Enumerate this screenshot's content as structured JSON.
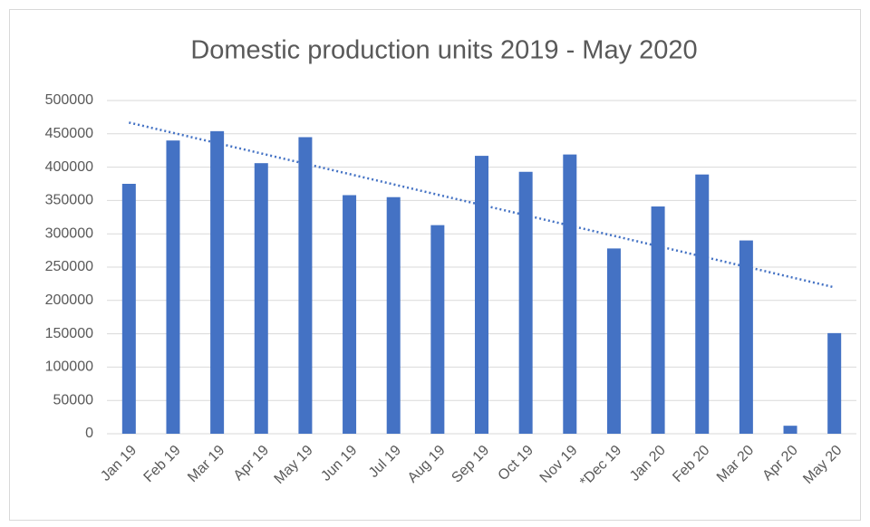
{
  "chart_data": {
    "type": "bar",
    "title": "Domestic production units 2019 - May 2020",
    "categories": [
      "Jan 19",
      "Feb 19",
      "Mar 19",
      "Apr 19",
      "May 19",
      "Jun 19",
      "Jul 19",
      "Aug 19",
      "Sep 19",
      "Oct 19",
      "Nov 19",
      "*Dec 19",
      "Jan 20",
      "Feb 20",
      "Mar 20",
      "Apr 20",
      "May 20"
    ],
    "values": [
      375000,
      440000,
      454000,
      406000,
      445000,
      358000,
      355000,
      313000,
      417000,
      393000,
      419000,
      278000,
      341000,
      389000,
      290000,
      12000,
      151000
    ],
    "color": "#4472c4",
    "trendline": "linear",
    "ylim": [
      0,
      500000
    ],
    "yticks": [
      0,
      50000,
      100000,
      150000,
      200000,
      250000,
      300000,
      350000,
      400000,
      450000,
      500000
    ],
    "grid": true
  }
}
